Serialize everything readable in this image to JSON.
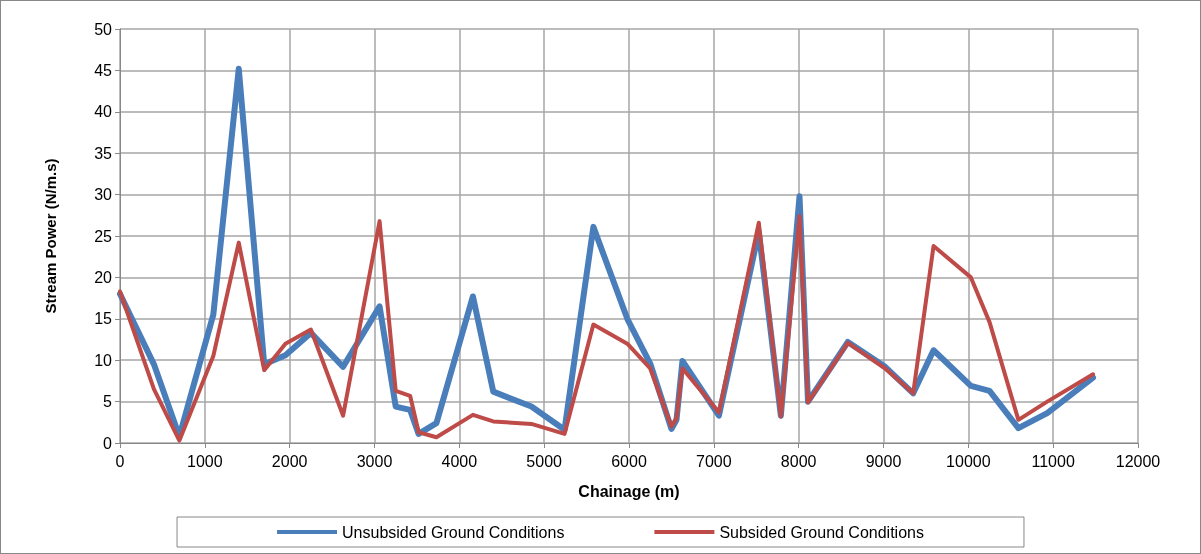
{
  "chart_data": {
    "type": "line",
    "xlabel": "Chainage (m)",
    "ylabel": "Stream Power (N/m.s)",
    "x": [
      0,
      400,
      700,
      1100,
      1400,
      1700,
      1950,
      2250,
      2630,
      3060,
      3250,
      3420,
      3520,
      3730,
      4160,
      4400,
      4850,
      5240,
      5580,
      5980,
      6250,
      6500,
      6560,
      6630,
      7060,
      7530,
      7790,
      8010,
      8110,
      8580,
      9020,
      9350,
      9590,
      10030,
      10250,
      10590,
      10930,
      11470
    ],
    "series": [
      {
        "name": "Unsubsided Ground Conditions",
        "color": "#4a7ebb",
        "values": [
          18,
          9.5,
          0.8,
          15.5,
          45.2,
          9.5,
          10.6,
          13.3,
          9.2,
          16.5,
          4.4,
          4.0,
          1.1,
          2.4,
          17.7,
          6.2,
          4.4,
          1.6,
          26.1,
          15.0,
          9.6,
          1.7,
          2.8,
          9.9,
          3.3,
          25.5,
          3.3,
          29.8,
          5.0,
          12.2,
          9.2,
          6.0,
          11.2,
          6.9,
          6.3,
          1.8,
          3.6,
          7.9
        ]
      },
      {
        "name": "Subsided Ground Conditions",
        "color": "#be4b48",
        "values": [
          18.3,
          6.5,
          0.3,
          10.5,
          24.2,
          8.8,
          12.0,
          13.7,
          3.3,
          26.8,
          6.3,
          5.7,
          1.3,
          0.7,
          3.4,
          2.6,
          2.3,
          1.1,
          14.3,
          12.0,
          9.0,
          2.0,
          3.0,
          9.0,
          3.7,
          26.6,
          3.2,
          27.4,
          4.9,
          12.1,
          9.0,
          6.0,
          23.8,
          20.0,
          14.6,
          2.8,
          5.0,
          8.3
        ]
      }
    ],
    "xlim": [
      0,
      12000
    ],
    "xticks": [
      0,
      1000,
      2000,
      3000,
      4000,
      5000,
      6000,
      7000,
      8000,
      9000,
      10000,
      11000,
      12000
    ],
    "ylim": [
      0,
      50
    ],
    "yticks": [
      0,
      5,
      10,
      15,
      20,
      25,
      30,
      35,
      40,
      45,
      50
    ],
    "grid": true,
    "legend": "bottom",
    "marker": "none",
    "line_style": "solid"
  }
}
